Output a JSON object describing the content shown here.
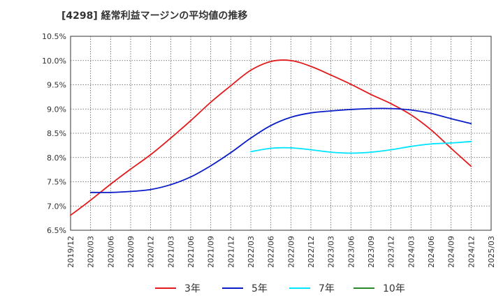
{
  "chart_data": {
    "type": "line",
    "title": "[4298]  経常利益マージンの平均値の推移",
    "x_categories": [
      "2019/12",
      "2020/03",
      "2020/06",
      "2020/09",
      "2020/12",
      "2021/03",
      "2021/06",
      "2021/09",
      "2021/12",
      "2022/03",
      "2022/06",
      "2022/09",
      "2022/12",
      "2023/03",
      "2023/06",
      "2023/09",
      "2023/12",
      "2024/03",
      "2024/06",
      "2024/09",
      "2024/12",
      "2025/03"
    ],
    "y_ticks": [
      "6.5%",
      "7.0%",
      "7.5%",
      "8.0%",
      "8.5%",
      "9.0%",
      "9.5%",
      "10.0%",
      "10.5%"
    ],
    "ylim": [
      6.5,
      10.5
    ],
    "grid": true,
    "legend_position": "bottom",
    "series": [
      {
        "name": "3年",
        "color": "#e31a1c",
        "values": [
          6.81,
          7.12,
          7.45,
          7.76,
          8.06,
          8.4,
          8.76,
          9.14,
          9.48,
          9.8,
          9.98,
          10.0,
          9.88,
          9.7,
          9.51,
          9.3,
          9.11,
          8.88,
          8.57,
          8.19,
          7.82,
          null
        ]
      },
      {
        "name": "5年",
        "color": "#0a1cc8",
        "values": [
          null,
          7.28,
          7.28,
          7.3,
          7.34,
          7.44,
          7.6,
          7.83,
          8.1,
          8.4,
          8.66,
          8.83,
          8.92,
          8.96,
          8.99,
          9.01,
          9.01,
          8.98,
          8.91,
          8.8,
          8.7,
          null
        ]
      },
      {
        "name": "7年",
        "color": "#00e5ff",
        "values": [
          null,
          null,
          null,
          null,
          null,
          null,
          null,
          null,
          null,
          8.12,
          8.19,
          8.2,
          8.16,
          8.11,
          8.09,
          8.11,
          8.16,
          8.23,
          8.28,
          8.3,
          8.33,
          null
        ]
      },
      {
        "name": "10年",
        "color": "#2a8a2a",
        "values": [
          null,
          null,
          null,
          null,
          null,
          null,
          null,
          null,
          null,
          null,
          null,
          null,
          null,
          null,
          null,
          null,
          null,
          null,
          null,
          null,
          null,
          null
        ]
      }
    ]
  }
}
